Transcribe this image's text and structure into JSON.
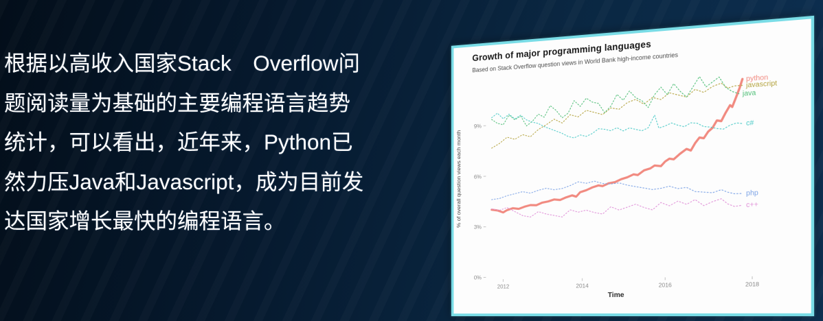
{
  "slide": {
    "caption_lines": [
      "根据以高收入国家Stack　Overflow问",
      "题阅读量为基础的主要编程语言趋势",
      "统计，可以看出，近年来，Python已",
      "然力压Java和Javascript，成为目前发",
      "达国家增长最快的编程语言。"
    ],
    "accent_border_color": "#79dce6",
    "text_color": "#ffffff"
  },
  "chart_data": {
    "type": "line",
    "title": "Growth of major programming languages",
    "subtitle": "Based on Stack Overflow question views in World Bank high-income countries",
    "xlabel": "Time",
    "ylabel": "% of overall question views each month",
    "xlim": [
      2011.6,
      2018.05
    ],
    "ylim": [
      0,
      11.8
    ],
    "x_ticks": [
      2012,
      2014,
      2016,
      2018
    ],
    "y_ticks": [
      0,
      3,
      6,
      9
    ],
    "y_tick_suffix": "%",
    "grid": false,
    "legend_position": "line-end-labels",
    "series": [
      {
        "name": "python",
        "color": "#f18a80",
        "style": "solid",
        "width": 3.2,
        "points": [
          [
            2011.7,
            4.0
          ],
          [
            2011.85,
            3.95
          ],
          [
            2012.0,
            3.82
          ],
          [
            2012.1,
            3.95
          ],
          [
            2012.25,
            4.05
          ],
          [
            2012.4,
            4.0
          ],
          [
            2012.55,
            4.12
          ],
          [
            2012.7,
            4.2
          ],
          [
            2012.85,
            4.18
          ],
          [
            2013.0,
            4.32
          ],
          [
            2013.15,
            4.38
          ],
          [
            2013.3,
            4.48
          ],
          [
            2013.45,
            4.44
          ],
          [
            2013.6,
            4.58
          ],
          [
            2013.75,
            4.68
          ],
          [
            2013.85,
            4.6
          ],
          [
            2013.95,
            4.85
          ],
          [
            2014.1,
            4.95
          ],
          [
            2014.25,
            5.1
          ],
          [
            2014.4,
            5.2
          ],
          [
            2014.5,
            5.15
          ],
          [
            2014.65,
            5.3
          ],
          [
            2014.8,
            5.35
          ],
          [
            2014.95,
            5.5
          ],
          [
            2015.1,
            5.6
          ],
          [
            2015.25,
            5.75
          ],
          [
            2015.35,
            5.7
          ],
          [
            2015.5,
            5.95
          ],
          [
            2015.65,
            6.05
          ],
          [
            2015.75,
            6.2
          ],
          [
            2015.9,
            6.15
          ],
          [
            2016.0,
            6.4
          ],
          [
            2016.1,
            6.55
          ],
          [
            2016.2,
            6.5
          ],
          [
            2016.35,
            6.8
          ],
          [
            2016.5,
            7.05
          ],
          [
            2016.6,
            6.95
          ],
          [
            2016.7,
            7.35
          ],
          [
            2016.8,
            7.65
          ],
          [
            2016.9,
            7.6
          ],
          [
            2017.0,
            7.95
          ],
          [
            2017.1,
            8.15
          ],
          [
            2017.2,
            8.55
          ],
          [
            2017.3,
            8.5
          ],
          [
            2017.4,
            8.95
          ],
          [
            2017.5,
            9.35
          ],
          [
            2017.55,
            9.25
          ],
          [
            2017.65,
            9.85
          ],
          [
            2017.72,
            10.3
          ],
          [
            2017.78,
            10.75
          ]
        ]
      },
      {
        "name": "javascript",
        "color": "#b4a33e",
        "style": "dotted",
        "width": 1.1,
        "points": [
          [
            2011.7,
            7.65
          ],
          [
            2011.9,
            7.9
          ],
          [
            2012.1,
            8.25
          ],
          [
            2012.3,
            8.1
          ],
          [
            2012.5,
            8.35
          ],
          [
            2012.7,
            8.2
          ],
          [
            2012.9,
            8.6
          ],
          [
            2013.1,
            8.85
          ],
          [
            2013.3,
            9.15
          ],
          [
            2013.5,
            8.9
          ],
          [
            2013.7,
            9.35
          ],
          [
            2013.9,
            9.2
          ],
          [
            2014.1,
            9.55
          ],
          [
            2014.3,
            9.4
          ],
          [
            2014.5,
            9.25
          ],
          [
            2014.7,
            9.6
          ],
          [
            2014.9,
            9.5
          ],
          [
            2015.1,
            9.85
          ],
          [
            2015.3,
            10.0
          ],
          [
            2015.5,
            9.7
          ],
          [
            2015.7,
            10.05
          ],
          [
            2015.9,
            9.9
          ],
          [
            2016.1,
            10.25
          ],
          [
            2016.3,
            10.1
          ],
          [
            2016.5,
            9.95
          ],
          [
            2016.7,
            10.35
          ],
          [
            2016.9,
            10.15
          ],
          [
            2017.1,
            10.45
          ],
          [
            2017.3,
            10.6
          ],
          [
            2017.45,
            10.3
          ],
          [
            2017.6,
            10.4
          ],
          [
            2017.78,
            10.4
          ]
        ]
      },
      {
        "name": "java",
        "color": "#50bf78",
        "style": "dotted",
        "width": 1.1,
        "points": [
          [
            2011.7,
            9.35
          ],
          [
            2011.85,
            9.1
          ],
          [
            2012.0,
            9.0
          ],
          [
            2012.15,
            9.55
          ],
          [
            2012.3,
            9.25
          ],
          [
            2012.45,
            9.45
          ],
          [
            2012.6,
            8.85
          ],
          [
            2012.75,
            9.1
          ],
          [
            2012.9,
            9.5
          ],
          [
            2013.05,
            9.3
          ],
          [
            2013.2,
            9.95
          ],
          [
            2013.35,
            9.65
          ],
          [
            2013.5,
            9.2
          ],
          [
            2013.65,
            9.45
          ],
          [
            2013.8,
            10.15
          ],
          [
            2013.95,
            9.8
          ],
          [
            2014.1,
            10.25
          ],
          [
            2014.25,
            10.0
          ],
          [
            2014.4,
            9.9
          ],
          [
            2014.55,
            9.35
          ],
          [
            2014.7,
            9.7
          ],
          [
            2014.85,
            10.35
          ],
          [
            2015.0,
            10.0
          ],
          [
            2015.15,
            10.5
          ],
          [
            2015.3,
            10.1
          ],
          [
            2015.45,
            9.9
          ],
          [
            2015.6,
            9.5
          ],
          [
            2015.75,
            10.2
          ],
          [
            2015.9,
            10.6
          ],
          [
            2016.05,
            10.15
          ],
          [
            2016.2,
            10.75
          ],
          [
            2016.35,
            10.3
          ],
          [
            2016.5,
            9.95
          ],
          [
            2016.65,
            10.5
          ],
          [
            2016.8,
            11.05
          ],
          [
            2016.95,
            10.45
          ],
          [
            2017.1,
            10.7
          ],
          [
            2017.25,
            10.95
          ],
          [
            2017.4,
            10.35
          ],
          [
            2017.55,
            10.1
          ],
          [
            2017.7,
            9.95
          ]
        ]
      },
      {
        "name": "c#",
        "color": "#4ecbc8",
        "style": "dotted",
        "width": 1.1,
        "points": [
          [
            2011.7,
            9.45
          ],
          [
            2011.85,
            9.7
          ],
          [
            2012.0,
            9.35
          ],
          [
            2012.15,
            9.6
          ],
          [
            2012.3,
            9.3
          ],
          [
            2012.45,
            9.5
          ],
          [
            2012.6,
            9.2
          ],
          [
            2012.75,
            9.05
          ],
          [
            2012.9,
            8.95
          ],
          [
            2013.05,
            8.75
          ],
          [
            2013.2,
            8.6
          ],
          [
            2013.35,
            8.45
          ],
          [
            2013.5,
            8.3
          ],
          [
            2013.65,
            8.1
          ],
          [
            2013.8,
            8.0
          ],
          [
            2013.95,
            8.15
          ],
          [
            2014.1,
            8.05
          ],
          [
            2014.25,
            8.2
          ],
          [
            2014.4,
            8.45
          ],
          [
            2014.55,
            8.4
          ],
          [
            2014.7,
            8.3
          ],
          [
            2014.85,
            8.45
          ],
          [
            2015.0,
            8.25
          ],
          [
            2015.15,
            8.4
          ],
          [
            2015.3,
            8.3
          ],
          [
            2015.45,
            8.2
          ],
          [
            2015.6,
            8.35
          ],
          [
            2015.75,
            9.05
          ],
          [
            2015.85,
            8.3
          ],
          [
            2016.0,
            8.4
          ],
          [
            2016.15,
            8.55
          ],
          [
            2016.3,
            8.4
          ],
          [
            2016.45,
            8.3
          ],
          [
            2016.6,
            8.5
          ],
          [
            2016.75,
            8.45
          ],
          [
            2016.9,
            8.25
          ],
          [
            2017.05,
            8.2
          ],
          [
            2017.2,
            8.1
          ],
          [
            2017.35,
            8.05
          ],
          [
            2017.5,
            8.25
          ],
          [
            2017.65,
            8.35
          ],
          [
            2017.78,
            8.3
          ]
        ]
      },
      {
        "name": "php",
        "color": "#7ea4e6",
        "style": "dotted",
        "width": 1.1,
        "points": [
          [
            2011.7,
            4.6
          ],
          [
            2011.9,
            4.65
          ],
          [
            2012.1,
            4.8
          ],
          [
            2012.3,
            4.9
          ],
          [
            2012.5,
            5.0
          ],
          [
            2012.7,
            4.9
          ],
          [
            2012.9,
            5.05
          ],
          [
            2013.1,
            5.15
          ],
          [
            2013.3,
            5.05
          ],
          [
            2013.5,
            5.1
          ],
          [
            2013.7,
            5.25
          ],
          [
            2013.9,
            5.45
          ],
          [
            2014.1,
            5.35
          ],
          [
            2014.3,
            5.45
          ],
          [
            2014.5,
            5.3
          ],
          [
            2014.7,
            5.25
          ],
          [
            2014.9,
            5.3
          ],
          [
            2015.1,
            5.15
          ],
          [
            2015.3,
            5.05
          ],
          [
            2015.5,
            4.95
          ],
          [
            2015.7,
            4.85
          ],
          [
            2015.9,
            4.9
          ],
          [
            2016.1,
            5.0
          ],
          [
            2016.3,
            4.85
          ],
          [
            2016.5,
            4.9
          ],
          [
            2016.7,
            4.65
          ],
          [
            2016.9,
            4.6
          ],
          [
            2017.1,
            4.55
          ],
          [
            2017.3,
            4.7
          ],
          [
            2017.45,
            4.55
          ],
          [
            2017.6,
            4.45
          ],
          [
            2017.78,
            4.45
          ]
        ]
      },
      {
        "name": "c++",
        "color": "#e091d8",
        "style": "dotted",
        "width": 1.1,
        "points": [
          [
            2011.7,
            4.05
          ],
          [
            2011.9,
            3.95
          ],
          [
            2012.1,
            4.1
          ],
          [
            2012.3,
            3.85
          ],
          [
            2012.5,
            3.6
          ],
          [
            2012.7,
            3.5
          ],
          [
            2012.9,
            3.8
          ],
          [
            2013.1,
            3.65
          ],
          [
            2013.3,
            3.55
          ],
          [
            2013.5,
            3.45
          ],
          [
            2013.7,
            3.85
          ],
          [
            2013.9,
            3.7
          ],
          [
            2014.1,
            3.8
          ],
          [
            2014.3,
            3.65
          ],
          [
            2014.5,
            3.55
          ],
          [
            2014.7,
            3.95
          ],
          [
            2014.9,
            3.75
          ],
          [
            2015.1,
            3.9
          ],
          [
            2015.3,
            4.05
          ],
          [
            2015.5,
            3.85
          ],
          [
            2015.7,
            3.7
          ],
          [
            2015.9,
            4.1
          ],
          [
            2016.1,
            3.9
          ],
          [
            2016.3,
            4.15
          ],
          [
            2016.5,
            3.95
          ],
          [
            2016.7,
            4.2
          ],
          [
            2016.9,
            3.85
          ],
          [
            2017.1,
            4.05
          ],
          [
            2017.3,
            4.2
          ],
          [
            2017.45,
            3.9
          ],
          [
            2017.6,
            3.75
          ],
          [
            2017.78,
            3.8
          ]
        ]
      }
    ]
  }
}
